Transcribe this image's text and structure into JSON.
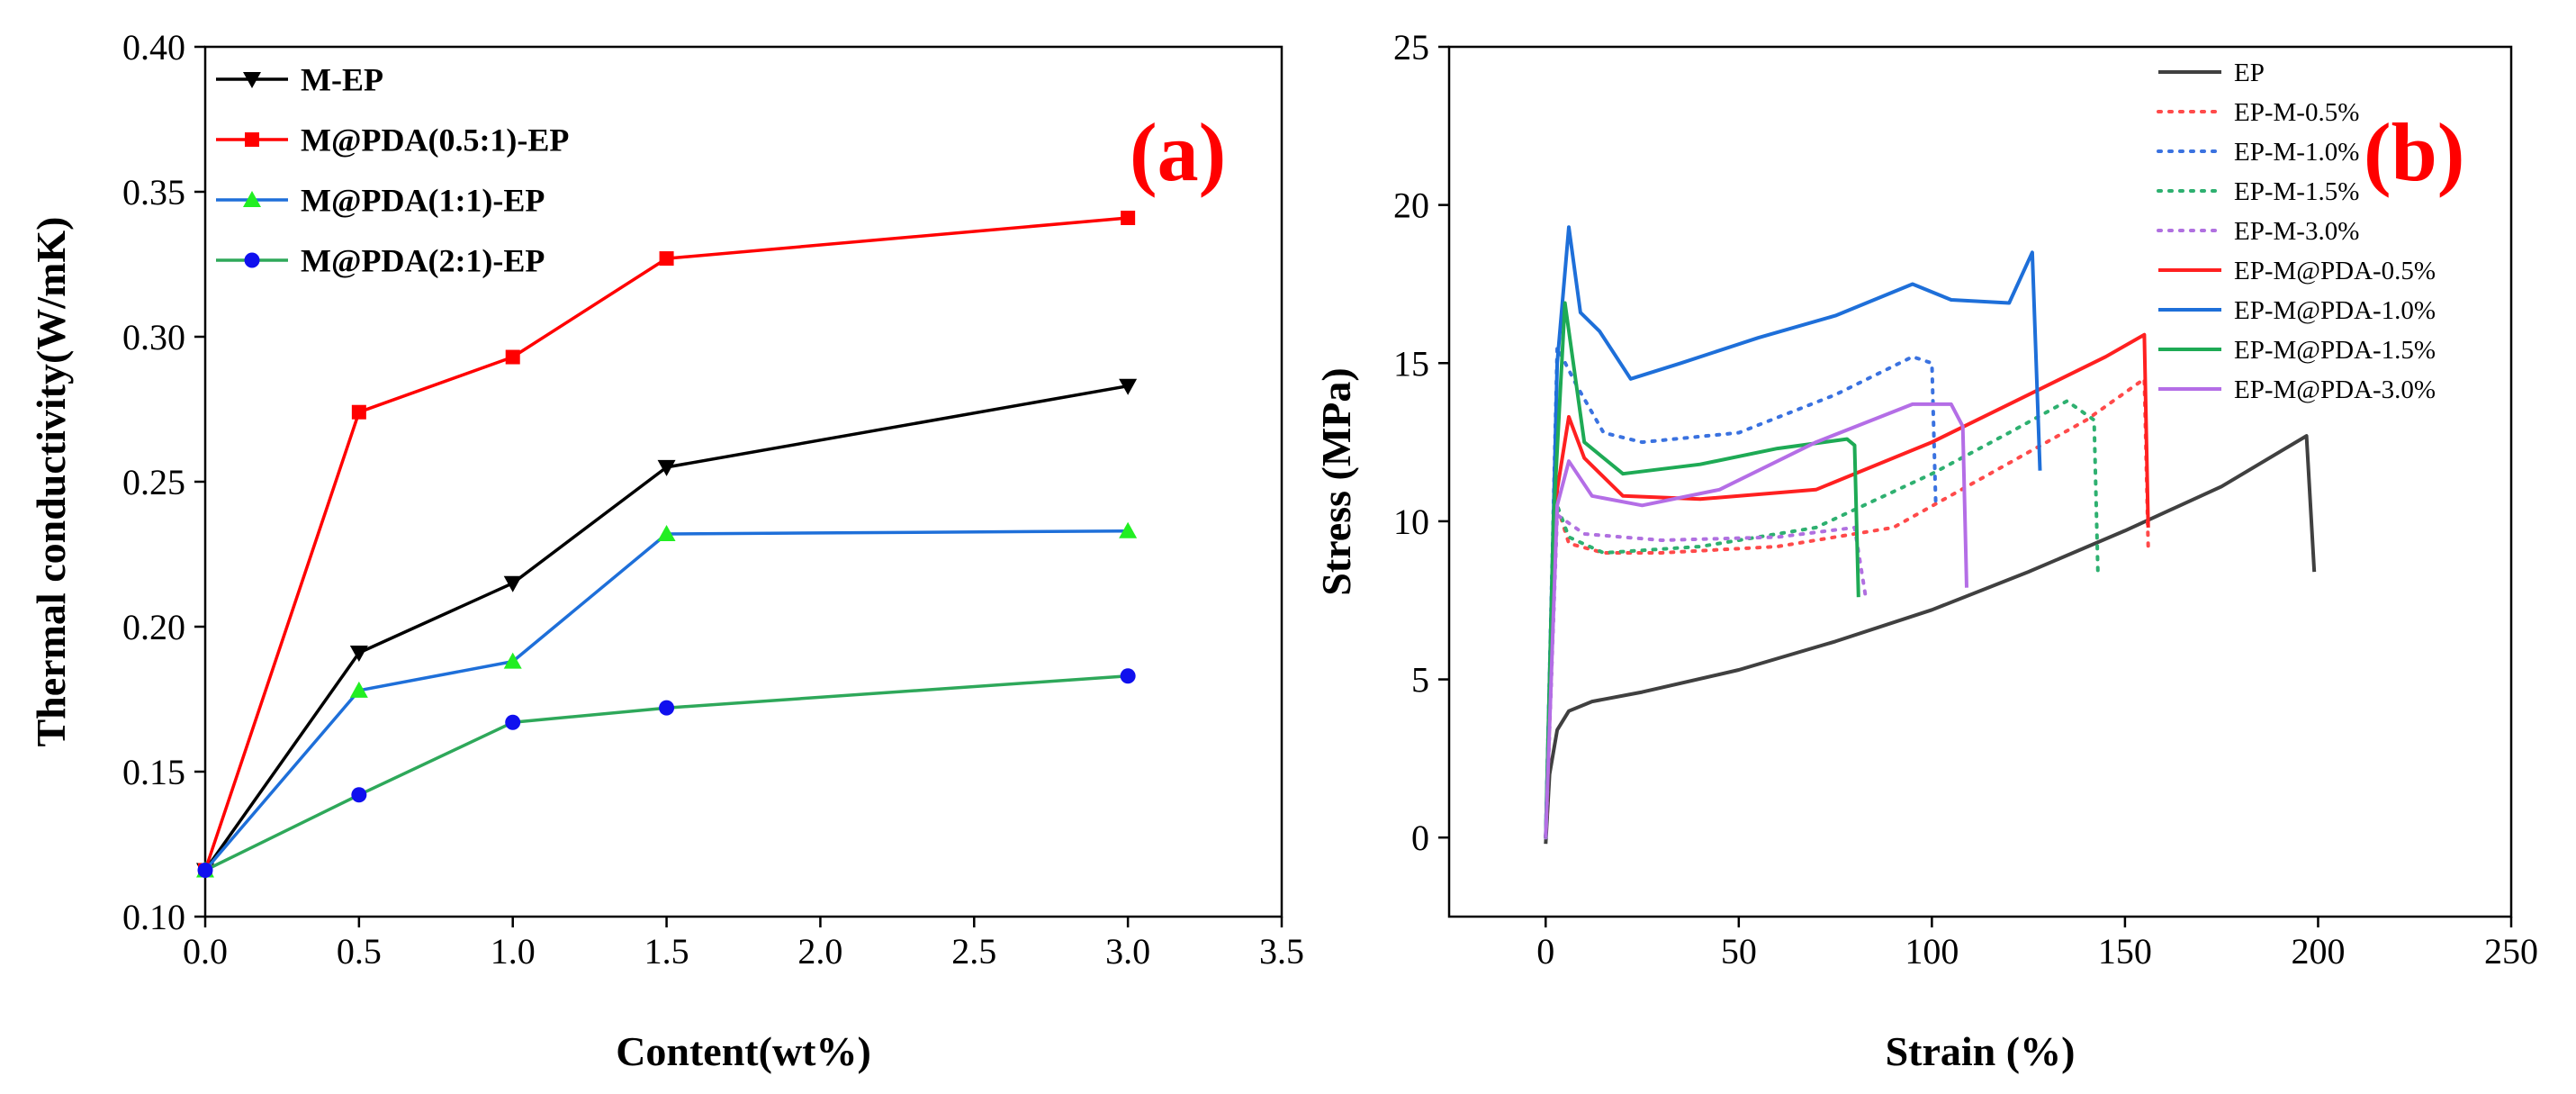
{
  "chart_data": [
    {
      "type": "line",
      "panel_label": "(a)",
      "xlabel": "Content(wt%)",
      "ylabel": "Thermal conductivity(W/mK)",
      "xlim": [
        0,
        3.5
      ],
      "ylim": [
        0.1,
        0.4
      ],
      "xticks": [
        "0.0",
        "0.5",
        "1.0",
        "1.5",
        "2.0",
        "2.5",
        "3.0",
        "3.5"
      ],
      "yticks": [
        "0.10",
        "0.15",
        "0.20",
        "0.25",
        "0.30",
        "0.35",
        "0.40"
      ],
      "grid": false,
      "legend_position": "top-left",
      "x": [
        0,
        0.5,
        1.0,
        1.5,
        3.0
      ],
      "series": [
        {
          "name": "M-EP",
          "color": "#000000",
          "marker": "triangle-down",
          "values": [
            0.116,
            0.191,
            0.215,
            0.255,
            0.283
          ]
        },
        {
          "name": "M@PDA(0.5:1)-EP",
          "color": "#ff0000",
          "marker": "square",
          "values": [
            0.116,
            0.274,
            0.293,
            0.327,
            0.341
          ]
        },
        {
          "name": "M@PDA(1:1)-EP",
          "color": "#1e6fd9",
          "marker": "triangle-up",
          "marker_color": "#22ee22",
          "values": [
            0.116,
            0.178,
            0.188,
            0.232,
            0.233
          ]
        },
        {
          "name": "M@PDA(2:1)-EP",
          "color": "#2ea85a",
          "marker": "circle",
          "marker_color": "#1010ee",
          "values": [
            0.116,
            0.142,
            0.167,
            0.172,
            0.183
          ]
        }
      ]
    },
    {
      "type": "line",
      "panel_label": "(b)",
      "xlabel": "Strain (%)",
      "ylabel": "Stress (MPa)",
      "xlim": [
        -25,
        250
      ],
      "ylim": [
        -2.5,
        25
      ],
      "xticks": [
        "0",
        "50",
        "100",
        "150",
        "200",
        "250"
      ],
      "yticks": [
        "0",
        "5",
        "10",
        "15",
        "20",
        "25"
      ],
      "grid": false,
      "legend_position": "top-right",
      "series": [
        {
          "name": "EP",
          "color": "#404040",
          "dash": "solid",
          "points": [
            [
              0,
              -0.2
            ],
            [
              1,
              2.0
            ],
            [
              3,
              3.4
            ],
            [
              6,
              4.0
            ],
            [
              12,
              4.3
            ],
            [
              25,
              4.6
            ],
            [
              50,
              5.3
            ],
            [
              75,
              6.2
            ],
            [
              100,
              7.2
            ],
            [
              125,
              8.4
            ],
            [
              150,
              9.7
            ],
            [
              175,
              11.1
            ],
            [
              197,
              12.7
            ],
            [
              199,
              8.4
            ]
          ]
        },
        {
          "name": "EP-M-0.5%",
          "color": "#ff4a4a",
          "dash": "dotted",
          "points": [
            [
              0,
              0
            ],
            [
              3,
              10.5
            ],
            [
              6,
              9.3
            ],
            [
              15,
              9.0
            ],
            [
              30,
              9.0
            ],
            [
              60,
              9.2
            ],
            [
              90,
              9.8
            ],
            [
              115,
              11.5
            ],
            [
              140,
              13.2
            ],
            [
              155,
              14.5
            ],
            [
              156,
              9.2
            ]
          ]
        },
        {
          "name": "EP-M-1.0%",
          "color": "#3a72e0",
          "dash": "dotted",
          "points": [
            [
              0,
              0
            ],
            [
              3,
              15.5
            ],
            [
              8,
              14.3
            ],
            [
              15,
              12.8
            ],
            [
              25,
              12.5
            ],
            [
              50,
              12.8
            ],
            [
              75,
              14.0
            ],
            [
              95,
              15.2
            ],
            [
              100,
              15.0
            ],
            [
              101,
              10.5
            ]
          ]
        },
        {
          "name": "EP-M-1.5%",
          "color": "#2eb070",
          "dash": "dotted",
          "points": [
            [
              0,
              0
            ],
            [
              3,
              10.5
            ],
            [
              6,
              9.5
            ],
            [
              15,
              9.0
            ],
            [
              40,
              9.2
            ],
            [
              70,
              9.8
            ],
            [
              100,
              11.5
            ],
            [
              120,
              12.8
            ],
            [
              135,
              13.8
            ],
            [
              142,
              13.2
            ],
            [
              143,
              8.3
            ]
          ]
        },
        {
          "name": "EP-M-3.0%",
          "color": "#b070e0",
          "dash": "dotted",
          "points": [
            [
              0,
              0
            ],
            [
              3,
              10.2
            ],
            [
              10,
              9.6
            ],
            [
              30,
              9.4
            ],
            [
              60,
              9.5
            ],
            [
              80,
              9.8
            ],
            [
              83,
              7.5
            ]
          ]
        },
        {
          "name": "EP-M@PDA-0.5%",
          "color": "#ff2020",
          "dash": "solid",
          "points": [
            [
              0,
              0
            ],
            [
              3,
              11.0
            ],
            [
              6,
              13.3
            ],
            [
              10,
              12.0
            ],
            [
              20,
              10.8
            ],
            [
              40,
              10.7
            ],
            [
              70,
              11.0
            ],
            [
              100,
              12.5
            ],
            [
              125,
              14.0
            ],
            [
              145,
              15.2
            ],
            [
              155,
              15.9
            ],
            [
              156,
              9.8
            ]
          ]
        },
        {
          "name": "EP-M@PDA-1.0%",
          "color": "#1e6fd9",
          "dash": "solid",
          "points": [
            [
              0,
              0
            ],
            [
              3,
              15.0
            ],
            [
              6,
              19.3
            ],
            [
              9,
              16.6
            ],
            [
              14,
              16.0
            ],
            [
              22,
              14.5
            ],
            [
              35,
              15.0
            ],
            [
              55,
              15.8
            ],
            [
              75,
              16.5
            ],
            [
              95,
              17.5
            ],
            [
              105,
              17.0
            ],
            [
              120,
              16.9
            ],
            [
              126,
              18.5
            ],
            [
              128,
              11.6
            ]
          ]
        },
        {
          "name": "EP-M@PDA-1.5%",
          "color": "#1eaa55",
          "dash": "solid",
          "points": [
            [
              0,
              0
            ],
            [
              2,
              10.0
            ],
            [
              5,
              16.9
            ],
            [
              10,
              12.5
            ],
            [
              20,
              11.5
            ],
            [
              40,
              11.8
            ],
            [
              60,
              12.3
            ],
            [
              78,
              12.6
            ],
            [
              80,
              12.4
            ],
            [
              81,
              7.6
            ]
          ]
        },
        {
          "name": "EP-M@PDA-3.0%",
          "color": "#b46ee6",
          "dash": "solid",
          "points": [
            [
              0,
              0
            ],
            [
              3,
              10.5
            ],
            [
              6,
              11.9
            ],
            [
              12,
              10.8
            ],
            [
              25,
              10.5
            ],
            [
              45,
              11.0
            ],
            [
              70,
              12.5
            ],
            [
              95,
              13.7
            ],
            [
              105,
              13.7
            ],
            [
              108,
              13.0
            ],
            [
              109,
              7.9
            ]
          ]
        }
      ]
    }
  ]
}
